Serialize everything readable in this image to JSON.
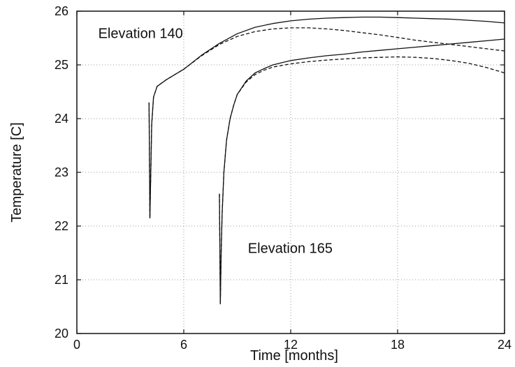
{
  "chart_data": {
    "type": "line",
    "xlabel": "Time [months]",
    "ylabel": "Temperature [C]",
    "xlim": [
      0,
      24
    ],
    "ylim": [
      20,
      26
    ],
    "xticks": [
      "0",
      "6",
      "12",
      "18",
      "24"
    ],
    "yticks": [
      "20",
      "21",
      "22",
      "23",
      "24",
      "25",
      "26"
    ],
    "grid": true,
    "annotations": [
      {
        "text": "Elevation 140",
        "x": 1.2,
        "y": 25.5
      },
      {
        "text": "Elevation 165",
        "x": 9.6,
        "y": 21.5
      }
    ],
    "series": [
      {
        "style": "solid",
        "x": [
          4.05,
          4.1,
          4.15,
          4.2,
          4.3,
          4.5,
          5,
          6,
          7,
          8,
          9,
          10,
          11,
          12,
          13,
          14,
          15,
          16,
          17,
          18,
          19,
          20,
          21,
          22,
          23,
          24
        ],
        "y": [
          24.3,
          22.15,
          23.0,
          23.9,
          24.4,
          24.6,
          24.72,
          24.92,
          25.18,
          25.4,
          25.58,
          25.7,
          25.77,
          25.82,
          25.85,
          25.87,
          25.88,
          25.89,
          25.89,
          25.88,
          25.87,
          25.86,
          25.85,
          25.83,
          25.81,
          25.78
        ]
      },
      {
        "style": "dashed",
        "x": [
          4.05,
          4.1,
          4.15,
          4.2,
          4.3,
          4.5,
          5,
          6,
          7,
          8,
          9,
          10,
          11,
          12,
          13,
          14,
          15,
          16,
          17,
          18,
          19,
          20,
          21,
          22,
          23,
          24
        ],
        "y": [
          24.3,
          22.15,
          23.0,
          23.9,
          24.4,
          24.6,
          24.72,
          24.92,
          25.17,
          25.38,
          25.53,
          25.62,
          25.67,
          25.69,
          25.69,
          25.67,
          25.64,
          25.6,
          25.56,
          25.51,
          25.46,
          25.42,
          25.38,
          25.34,
          25.3,
          25.26
        ]
      },
      {
        "style": "solid",
        "x": [
          8.0,
          8.05,
          8.1,
          8.15,
          8.25,
          8.4,
          8.6,
          8.8,
          9,
          9.5,
          10,
          10.5,
          11,
          12,
          13,
          14,
          15,
          16,
          17,
          18,
          19,
          20,
          21,
          22,
          23,
          24
        ],
        "y": [
          22.6,
          20.55,
          21.5,
          22.2,
          23.0,
          23.6,
          24.0,
          24.25,
          24.45,
          24.7,
          24.85,
          24.93,
          25.0,
          25.08,
          25.13,
          25.17,
          25.2,
          25.24,
          25.27,
          25.3,
          25.33,
          25.36,
          25.39,
          25.42,
          25.45,
          25.48
        ]
      },
      {
        "style": "dashed",
        "x": [
          8.0,
          8.05,
          8.1,
          8.15,
          8.25,
          8.4,
          8.6,
          8.8,
          9,
          9.5,
          10,
          10.5,
          11,
          12,
          13,
          14,
          15,
          16,
          17,
          18,
          19,
          20,
          21,
          22,
          23,
          24
        ],
        "y": [
          22.6,
          20.55,
          21.5,
          22.2,
          23.0,
          23.6,
          24.0,
          24.25,
          24.45,
          24.68,
          24.82,
          24.9,
          24.96,
          25.02,
          25.06,
          25.09,
          25.11,
          25.13,
          25.14,
          25.15,
          25.14,
          25.12,
          25.08,
          25.03,
          24.95,
          24.85
        ]
      }
    ]
  }
}
